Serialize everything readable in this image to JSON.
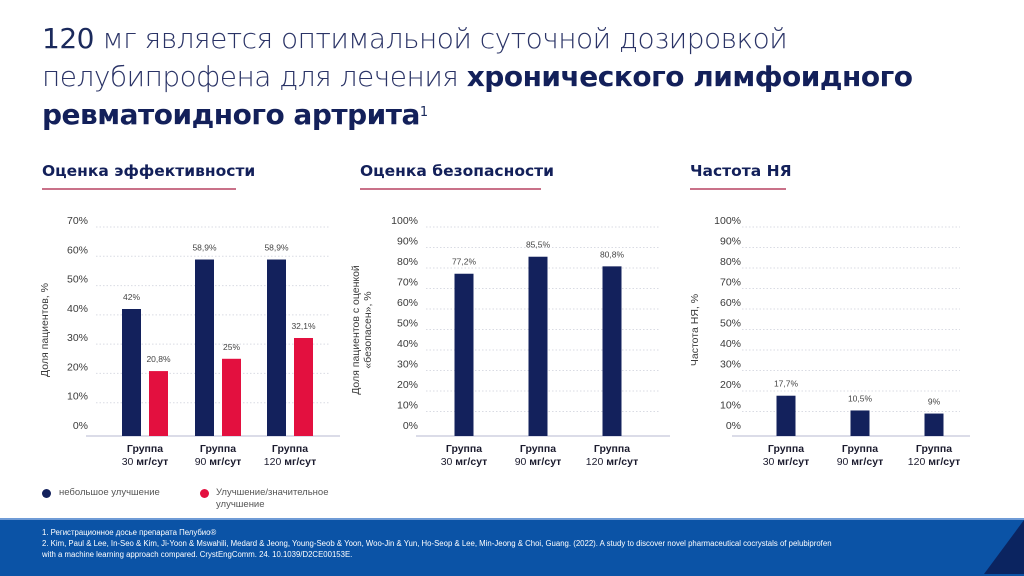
{
  "header": {
    "title_num": "120",
    "title_part1": " мг является оптимальной суточной дозировкой пелубипрофена для лечения ",
    "title_bold": "хронического лимфоидного ревматоидного артрита",
    "title_sup": "1"
  },
  "sections": {
    "efficacy": "Оценка эффективности",
    "safety": "Оценка безопасности",
    "ae": "Частота НЯ"
  },
  "legend": {
    "item1": "небольшое улучшение",
    "item2_line1": "Улучшение/значительное",
    "item2_line2": "улучшение"
  },
  "colors": {
    "navy": "#13215c",
    "red": "#e3103f",
    "accent_line": "#c97189",
    "footer": "#0b53a6",
    "footer_dark": "#0b2460"
  },
  "references": {
    "ref1": "1. Регистрационное досье препарата Пелубио®",
    "ref2_line1": "2. Kim, Paul & Lee, In-Seo & Kim, Ji-Yoon & Mswahili, Medard & Jeong, Young-Seob & Yoon, Woo-Jin & Yun, Ho-Seop & Lee, Min-Jeong & Choi, Guang. (2022). A study to discover novel pharmaceutical cocrystals of pelubiprofen",
    "ref2_line2": "with a machine learning approach compared. CrystEngComm. 24. 10.1039/D2CE00153E."
  },
  "chart_data": [
    {
      "type": "bar",
      "title": "Оценка эффективности",
      "ylabel": "Доля пациентов, %",
      "xlabel": "",
      "categories": [
        {
          "line1": "Группа",
          "dose": "30",
          "unit": " мг/сут"
        },
        {
          "line1": "Группа",
          "dose": "90",
          "unit": " мг/сут"
        },
        {
          "line1": "Группа",
          "dose": "120",
          "unit": " мг/сут"
        }
      ],
      "ylim": [
        0,
        70
      ],
      "yticks": [
        0,
        10,
        20,
        30,
        40,
        50,
        60,
        70
      ],
      "ytick_labels": [
        "0%",
        "10%",
        "20%",
        "30%",
        "40%",
        "50%",
        "60%",
        "70%"
      ],
      "grid": true,
      "legend_position": "bottom-left",
      "series": [
        {
          "name": "небольшое улучшение",
          "color": "#13215c",
          "values": [
            42,
            58.9,
            58.9
          ],
          "labels": [
            "42%",
            "58,9%",
            "58,9%"
          ]
        },
        {
          "name": "Улучшение/значительное улучшение",
          "color": "#e3103f",
          "values": [
            20.8,
            25,
            32.1
          ],
          "labels": [
            "20,8%",
            "25%",
            "32,1%"
          ]
        }
      ]
    },
    {
      "type": "bar",
      "title": "Оценка безопасности",
      "ylabel": "Доля пациентов с оценкой «безопасен», %",
      "ylabel_line1": "Доля пациентов с оценкой",
      "ylabel_line2": "«безопасен», %",
      "xlabel": "",
      "categories": [
        {
          "line1": "Группа",
          "dose": "30",
          "unit": " мг/сут"
        },
        {
          "line1": "Группа",
          "dose": "90",
          "unit": " мг/сут"
        },
        {
          "line1": "Группа",
          "dose": "120",
          "unit": " мг/сут"
        }
      ],
      "ylim": [
        0,
        100
      ],
      "yticks": [
        0,
        10,
        20,
        30,
        40,
        50,
        60,
        70,
        80,
        90,
        100
      ],
      "ytick_labels": [
        "0%",
        "10%",
        "20%",
        "30%",
        "40%",
        "50%",
        "60%",
        "70%",
        "80%",
        "90%",
        "100%"
      ],
      "grid": true,
      "series": [
        {
          "name": "безопасен",
          "color": "#13215c",
          "values": [
            77.2,
            85.5,
            80.8
          ],
          "labels": [
            "77,2%",
            "85,5%",
            "80,8%"
          ]
        }
      ]
    },
    {
      "type": "bar",
      "title": "Частота НЯ",
      "ylabel": "Частота НЯ, %",
      "xlabel": "",
      "categories": [
        {
          "line1": "Группа",
          "dose": "30",
          "unit": " мг/сут"
        },
        {
          "line1": "Группа",
          "dose": "90",
          "unit": " мг/сут"
        },
        {
          "line1": "Группа",
          "dose": "120",
          "unit": " мг/сут"
        }
      ],
      "ylim": [
        0,
        100
      ],
      "yticks": [
        0,
        10,
        20,
        30,
        40,
        50,
        60,
        70,
        80,
        90,
        100
      ],
      "ytick_labels": [
        "0%",
        "10%",
        "20%",
        "30%",
        "40%",
        "50%",
        "60%",
        "70%",
        "80%",
        "90%",
        "100%"
      ],
      "grid": true,
      "series": [
        {
          "name": "Частота НЯ",
          "color": "#13215c",
          "values": [
            17.7,
            10.5,
            9
          ],
          "labels": [
            "17,7%",
            "10,5%",
            "9%"
          ]
        }
      ]
    }
  ]
}
